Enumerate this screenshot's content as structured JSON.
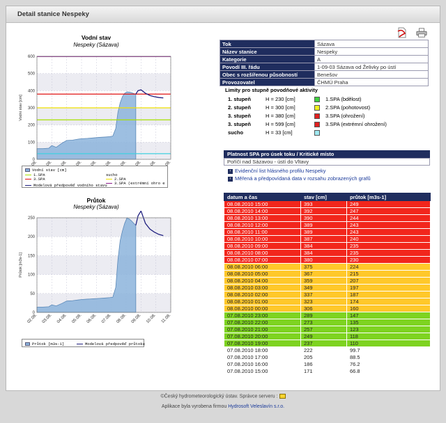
{
  "page_title": "Detail stanice Nespeky",
  "icons": {
    "pdf": "pdf-icon",
    "print": "printer-icon"
  },
  "chart1": {
    "title": "Vodní stav",
    "subtitle": "Nespeky (Sázava)",
    "ylabel": "Vodní stav [cm]",
    "legend": {
      "measured": "Vodní stav [cm]",
      "spa1": "1.SPA",
      "spa2": "2.SPA",
      "spa3": "3.SPA",
      "spa3x": "3.SPA (extrémní ohro e",
      "sucho": "sucho",
      "model": "Modelová předpověď vodního stavu"
    }
  },
  "chart2": {
    "title": "Průtok",
    "subtitle": "Nespeky (Sázava)",
    "ylabel": "Průtok [m3s-1]",
    "legend": {
      "measured": "Průtok [m3s-1]",
      "model": "Modelová předpověď průtoku"
    }
  },
  "chart_data": [
    {
      "type": "area",
      "title": "Vodní stav",
      "subtitle": "Nespeky (Sázava)",
      "ylabel": "Vodní stav [cm]",
      "ylim": [
        0,
        600
      ],
      "yticks": [
        0,
        100,
        200,
        300,
        400,
        500,
        600
      ],
      "xlim": [
        2,
        11
      ],
      "xticks": [
        "02.08.",
        "03.08.",
        "04.08.",
        "05.08.",
        "06.08.",
        "07.08.",
        "08.08.",
        "09.08.",
        "10.08.",
        "11.08."
      ],
      "thresholds": [
        {
          "name": "1.SPA",
          "value": 230,
          "color": "#a8e000"
        },
        {
          "name": "2.SPA",
          "value": 300,
          "color": "#f0e000"
        },
        {
          "name": "3.SPA",
          "value": 380,
          "color": "#e01010"
        },
        {
          "name": "3.SPA (extrémní ohro e",
          "value": 599,
          "color": "#8a1a8a"
        },
        {
          "name": "sucho",
          "value": 33,
          "color": "#40d0e0"
        }
      ],
      "series": [
        {
          "name": "Vodní stav [cm]",
          "kind": "area",
          "color": "#8cb4dc",
          "x": [
            2.0,
            2.4,
            2.8,
            3.0,
            3.3,
            3.7,
            4.0,
            4.4,
            4.8,
            5.0,
            5.4,
            5.8,
            6.2,
            6.6,
            6.9,
            7.1,
            7.3,
            7.45,
            7.6,
            7.75,
            7.9,
            8.05,
            8.2,
            8.35,
            8.5,
            8.65
          ],
          "y": [
            62,
            62,
            65,
            80,
            70,
            95,
            110,
            112,
            118,
            120,
            122,
            125,
            128,
            130,
            132,
            135,
            180,
            275,
            330,
            365,
            385,
            393,
            392,
            389,
            384,
            380
          ]
        },
        {
          "name": "Modelová předpověď vodního stavu",
          "kind": "line",
          "color": "#202080",
          "x": [
            8.65,
            8.8,
            9.0,
            9.3,
            9.6,
            9.9,
            10.2,
            10.5
          ],
          "y": [
            380,
            400,
            405,
            385,
            372,
            365,
            360,
            358
          ]
        }
      ]
    },
    {
      "type": "area",
      "title": "Průtok",
      "subtitle": "Nespeky (Sázava)",
      "ylabel": "Průtok [m3s-1]",
      "ylim": [
        0,
        250
      ],
      "yticks": [
        0,
        50,
        100,
        150,
        200,
        250
      ],
      "xlim": [
        2,
        11
      ],
      "xticks": [
        "02.08.",
        "03.08.",
        "04.08.",
        "05.08.",
        "06.08.",
        "07.08.",
        "08.08.",
        "09.08.",
        "10.08.",
        "11.08."
      ],
      "series": [
        {
          "name": "Průtok [m3s-1]",
          "kind": "area",
          "color": "#8cb4dc",
          "x": [
            2.0,
            2.4,
            2.8,
            3.0,
            3.3,
            3.7,
            4.0,
            4.4,
            4.8,
            5.0,
            5.4,
            5.8,
            6.2,
            6.6,
            6.9,
            7.1,
            7.3,
            7.45,
            7.6,
            7.75,
            7.9,
            8.05,
            8.2,
            8.35,
            8.5,
            8.65
          ],
          "y": [
            14,
            14,
            15,
            20,
            17,
            24,
            30,
            31,
            33,
            34,
            35,
            36,
            37,
            38,
            39,
            40,
            66,
            140,
            190,
            215,
            235,
            249,
            247,
            242,
            236,
            230
          ]
        },
        {
          "name": "Modelová předpověď průtoku",
          "kind": "line",
          "color": "#202080",
          "x": [
            8.65,
            8.8,
            9.0,
            9.3,
            9.6,
            9.9,
            10.2,
            10.5
          ],
          "y": [
            230,
            255,
            268,
            235,
            220,
            212,
            206,
            203
          ]
        }
      ]
    }
  ],
  "station_info": [
    {
      "key": "Tok",
      "value": "Sázava"
    },
    {
      "key": "Název stanice",
      "value": "Nespeky"
    },
    {
      "key": "Kategorie",
      "value": "A"
    },
    {
      "key": "Povodí III. řádu",
      "value": "1-09-03 Sázava od Želivky po ústí"
    },
    {
      "key": "Obec s rozšířenou působností",
      "value": "Benešov"
    },
    {
      "key": "Provozovatel",
      "value": "ČHMÚ Praha"
    }
  ],
  "limits": {
    "title": "Limity pro stupně povodňové aktivity",
    "rows": [
      {
        "label": "1. stupeň",
        "h": "H = 230 [cm]",
        "color": "#40d040",
        "desc": "1.SPA (bdělost)"
      },
      {
        "label": "2. stupeň",
        "h": "H = 300 [cm]",
        "color": "#f0f020",
        "desc": "2.SPA (pohotovost)"
      },
      {
        "label": "3. stupeň",
        "h": "H = 380 [cm]",
        "color": "#e02020",
        "desc": "3.SPA (ohrožení)"
      },
      {
        "label": "3. stupeň",
        "h": "H = 599 [cm]",
        "color": "#e02020",
        "desc": "3.SPA (extrémní ohrožení)"
      },
      {
        "label": "sucho",
        "h": "H = 33 [cm]",
        "color": "#a0e8f0",
        "desc": ""
      }
    ]
  },
  "spa": {
    "header": "Platnost SPA pro úsek toku / Kritické místo",
    "value": "Poříčí nad Sázavou - ústí do Vltavy"
  },
  "links": [
    "Evidenční list hlásného profilu Nespeky",
    "Měřená a předpovídaná data v rozsahu zobrazených grafů"
  ],
  "data_table": {
    "headers": [
      "datum a čas",
      "stav [cm]",
      "průtok [m3s-1]"
    ],
    "rows": [
      {
        "dt": "08.08.2010 15:00",
        "stav": "393",
        "prutok": "249",
        "level": 3
      },
      {
        "dt": "08.08.2010 14:00",
        "stav": "392",
        "prutok": "247",
        "level": 3
      },
      {
        "dt": "08.08.2010 13:00",
        "stav": "390",
        "prutok": "244",
        "level": 3
      },
      {
        "dt": "08.08.2010 12:00",
        "stav": "389",
        "prutok": "243",
        "level": 3
      },
      {
        "dt": "08.08.2010 11:00",
        "stav": "389",
        "prutok": "243",
        "level": 3
      },
      {
        "dt": "08.08.2010 10:00",
        "stav": "387",
        "prutok": "240",
        "level": 3
      },
      {
        "dt": "08.08.2010 09:00",
        "stav": "384",
        "prutok": "235",
        "level": 3
      },
      {
        "dt": "08.08.2010 08:00",
        "stav": "384",
        "prutok": "235",
        "level": 3
      },
      {
        "dt": "08.08.2010 07:00",
        "stav": "380",
        "prutok": "230",
        "level": 3
      },
      {
        "dt": "08.08.2010 06:00",
        "stav": "375",
        "prutok": "224",
        "level": 2
      },
      {
        "dt": "08.08.2010 05:00",
        "stav": "367",
        "prutok": "215",
        "level": 2
      },
      {
        "dt": "08.08.2010 04:00",
        "stav": "359",
        "prutok": "207",
        "level": 2
      },
      {
        "dt": "08.08.2010 03:00",
        "stav": "349",
        "prutok": "197",
        "level": 2
      },
      {
        "dt": "08.08.2010 02:00",
        "stav": "337",
        "prutok": "187",
        "level": 2
      },
      {
        "dt": "08.08.2010 01:00",
        "stav": "323",
        "prutok": "174",
        "level": 2
      },
      {
        "dt": "08.08.2010 00:00",
        "stav": "306",
        "prutok": "160",
        "level": 2
      },
      {
        "dt": "07.08.2010 23:00",
        "stav": "289",
        "prutok": "147",
        "level": 1
      },
      {
        "dt": "07.08.2010 22:00",
        "stav": "273",
        "prutok": "135",
        "level": 1
      },
      {
        "dt": "07.08.2010 21:00",
        "stav": "257",
        "prutok": "123",
        "level": 1
      },
      {
        "dt": "07.08.2010 20:00",
        "stav": "249",
        "prutok": "118",
        "level": 1
      },
      {
        "dt": "07.08.2010 19:00",
        "stav": "237",
        "prutok": "110",
        "level": 1
      },
      {
        "dt": "07.08.2010 18:00",
        "stav": "222",
        "prutok": "99.7",
        "level": 0
      },
      {
        "dt": "07.08.2010 17:00",
        "stav": "205",
        "prutok": "88.5",
        "level": 0
      },
      {
        "dt": "07.08.2010 16:00",
        "stav": "186",
        "prutok": "76.2",
        "level": 0
      },
      {
        "dt": "07.08.2010 15:00",
        "stav": "171",
        "prutok": "66.8",
        "level": 0
      }
    ]
  },
  "level_colors": {
    "0": "#ffffff",
    "1": "#7ed321",
    "2": "#ffc82a",
    "3": "#f2261c"
  },
  "footer": {
    "line1": "©Český hydrometeorologický ústav. Správce serveru :",
    "line2_prefix": "Aplikace byla vyrobena firmou",
    "firm": "Hydrosoft Veleslavín s.r.o."
  }
}
